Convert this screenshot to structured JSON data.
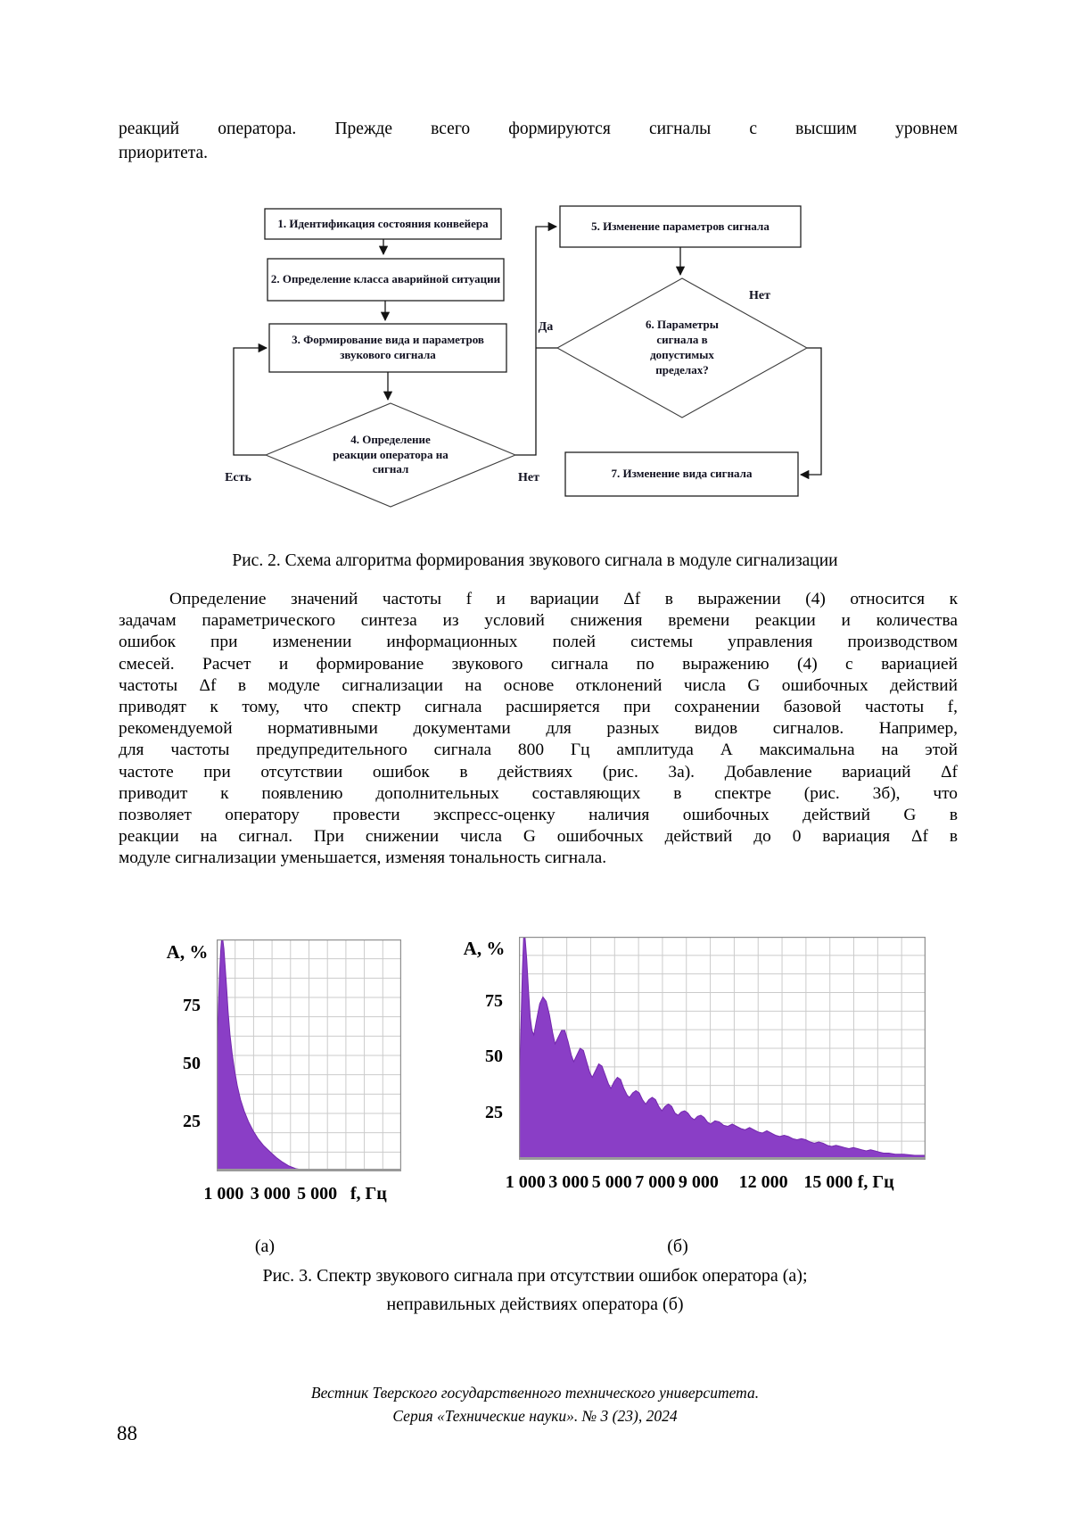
{
  "page": {
    "top_lines": [
      "реакций оператора. Прежде всего формируются сигналы с высшим уровнем",
      "приоритета."
    ],
    "fig2_caption": "Рис. 2. Схема алгоритма формирования звукового сигнала в модуле сигнализации",
    "body_lines": [
      "Определение значений частоты f и вариации Δf в выражении (4) относится к",
      "задачам параметрического синтеза из условий снижения времени реакции и количества",
      "ошибок при изменении информационных полей системы управления производством",
      "смесей. Расчет и формирование звукового сигнала по выражению (4) с вариацией",
      "частоты Δf в модуле сигнализации на основе отклонений числа G ошибочных действий",
      "приводят к тому, что спектр сигнала расширяется при сохранении базовой частоты f,",
      "рекомендуемой нормативными документами для разных видов сигналов. Например,",
      "для частоты предупредительного сигнала 800 Гц амплитуда А максимальна на этой",
      "частоте при отсутствии ошибок в действиях (рис. 3а). Добавление вариаций Δf",
      "приводит к появлению дополнительных составляющих в спектре (рис. 3б), что",
      "позволяет оператору провести экспресс-оценку наличия ошибочных действий G в",
      "реакции на сигнал. При снижении числа G ошибочных действий до 0 вариация Δf в",
      "модуле сигнализации уменьшается, изменяя тональность сигнала."
    ],
    "fig3_caption_line1": "Рис. 3. Спектр звукового сигнала при отсутствии ошибок оператора (а);",
    "fig3_caption_line2": "неправильных действиях оператора (б)",
    "footer_line1": "Вестник Тверского государственного технического университета.",
    "footer_line2": "Серия «Технические науки». № 3 (23), 2024",
    "page_number": "88"
  },
  "flowchart": {
    "nodes": {
      "n1": "1. Идентификация состояния конвейера",
      "n2": "2. Определение класса аварийной ситуации",
      "n3": "3. Формирование вида и параметров звукового сигнала",
      "n4": "4. Определение реакции оператора на сигнал",
      "n5": "5. Изменение параметров сигнала",
      "n6": "6. Параметры сигнала в допустимых пределах?",
      "n7": "7. Изменение вида сигнала"
    },
    "labels": {
      "yes": "Да",
      "no_params": "Нет",
      "reaction_yes": "Есть",
      "reaction_no": "Нет"
    }
  },
  "chart_data": [
    {
      "type": "area",
      "title": "(а)",
      "ylabel": "A, %",
      "xlabel": "f, Гц",
      "xrange": [
        700,
        8600
      ],
      "ylim": [
        0,
        100
      ],
      "grid": true,
      "x_gridlines": 10,
      "y_gridlines": 12,
      "fill_color": "#8a3ec6",
      "stroke_color": "#7327ad",
      "yticks": [
        {
          "label": "75",
          "value": 75
        },
        {
          "label": "50",
          "value": 50
        },
        {
          "label": "25",
          "value": 25
        }
      ],
      "xticks": [
        {
          "label": "1 000",
          "value": 1000
        },
        {
          "label": "3 000",
          "value": 3000
        },
        {
          "label": "5 000",
          "value": 5000
        }
      ],
      "unit_pos": 7200,
      "points": [
        [
          700,
          50
        ],
        [
          760,
          67
        ],
        [
          820,
          84
        ],
        [
          870,
          95
        ],
        [
          910,
          100
        ],
        [
          960,
          100
        ],
        [
          1010,
          96
        ],
        [
          1060,
          89
        ],
        [
          1120,
          80
        ],
        [
          1190,
          69
        ],
        [
          1270,
          59
        ],
        [
          1360,
          51
        ],
        [
          1460,
          44
        ],
        [
          1580,
          37
        ],
        [
          1720,
          31
        ],
        [
          1880,
          26
        ],
        [
          2060,
          21.5
        ],
        [
          2260,
          17.5
        ],
        [
          2480,
          14
        ],
        [
          2720,
          11
        ],
        [
          2980,
          8.5
        ],
        [
          3250,
          6
        ],
        [
          3520,
          4
        ],
        [
          3800,
          2.3
        ],
        [
          4080,
          1.2
        ],
        [
          4400,
          0.6
        ],
        [
          5000,
          0.4
        ],
        [
          8600,
          0.3
        ]
      ]
    },
    {
      "type": "area",
      "title": "(б)",
      "ylabel": "A, %",
      "xlabel": "f, Гц",
      "xrange": [
        700,
        19500
      ],
      "ylim": [
        0,
        100
      ],
      "grid": true,
      "x_gridlines": 17,
      "y_gridlines": 12,
      "fill_color": "#8a3ec6",
      "stroke_color": "#7327ad",
      "yticks": [
        {
          "label": "75",
          "value": 75
        },
        {
          "label": "50",
          "value": 50
        },
        {
          "label": "25",
          "value": 25
        }
      ],
      "xticks": [
        {
          "label": "1 000",
          "value": 1000
        },
        {
          "label": "3 000",
          "value": 3000
        },
        {
          "label": "5 000",
          "value": 5000
        },
        {
          "label": "7 000",
          "value": 7000
        },
        {
          "label": "9 000",
          "value": 9000
        },
        {
          "label": "12 000",
          "value": 12000
        },
        {
          "label": "15 000",
          "value": 15000
        }
      ],
      "unit_pos": 17200,
      "points": [
        [
          700,
          28
        ],
        [
          780,
          55
        ],
        [
          860,
          85
        ],
        [
          920,
          100
        ],
        [
          980,
          100
        ],
        [
          1060,
          90
        ],
        [
          1140,
          76
        ],
        [
          1220,
          64
        ],
        [
          1300,
          58
        ],
        [
          1390,
          56
        ],
        [
          1500,
          62
        ],
        [
          1660,
          70
        ],
        [
          1810,
          73
        ],
        [
          1960,
          71
        ],
        [
          2110,
          65
        ],
        [
          2260,
          57
        ],
        [
          2370,
          52
        ],
        [
          2520,
          55
        ],
        [
          2670,
          58
        ],
        [
          2820,
          58
        ],
        [
          2970,
          53
        ],
        [
          3120,
          47
        ],
        [
          3230,
          44
        ],
        [
          3380,
          47
        ],
        [
          3530,
          50
        ],
        [
          3680,
          49
        ],
        [
          3830,
          44
        ],
        [
          3980,
          39
        ],
        [
          4090,
          37
        ],
        [
          4240,
          40
        ],
        [
          4390,
          43
        ],
        [
          4540,
          42
        ],
        [
          4690,
          38
        ],
        [
          4840,
          34
        ],
        [
          4950,
          32
        ],
        [
          5100,
          35
        ],
        [
          5250,
          37
        ],
        [
          5400,
          36
        ],
        [
          5550,
          32
        ],
        [
          5700,
          29
        ],
        [
          5810,
          28
        ],
        [
          5960,
          30
        ],
        [
          6110,
          31
        ],
        [
          6260,
          30
        ],
        [
          6410,
          27
        ],
        [
          6560,
          25
        ],
        [
          6710,
          27
        ],
        [
          6860,
          28
        ],
        [
          7010,
          27
        ],
        [
          7160,
          24
        ],
        [
          7310,
          22
        ],
        [
          7460,
          24
        ],
        [
          7610,
          25
        ],
        [
          7760,
          24
        ],
        [
          7910,
          21
        ],
        [
          8060,
          20
        ],
        [
          8210,
          21.5
        ],
        [
          8360,
          22
        ],
        [
          8510,
          21
        ],
        [
          8660,
          19
        ],
        [
          8810,
          18
        ],
        [
          8960,
          19.5
        ],
        [
          9110,
          20
        ],
        [
          9260,
          19
        ],
        [
          9410,
          17
        ],
        [
          9560,
          16
        ],
        [
          9760,
          17.5
        ],
        [
          9960,
          17
        ],
        [
          10160,
          15.5
        ],
        [
          10360,
          15
        ],
        [
          10560,
          16
        ],
        [
          10760,
          15
        ],
        [
          10960,
          14
        ],
        [
          11160,
          13.5
        ],
        [
          11360,
          14.5
        ],
        [
          11560,
          13.5
        ],
        [
          11760,
          12.5
        ],
        [
          11960,
          12
        ],
        [
          12160,
          13
        ],
        [
          12360,
          12
        ],
        [
          12560,
          11
        ],
        [
          12760,
          10.5
        ],
        [
          12960,
          11
        ],
        [
          13160,
          10.5
        ],
        [
          13360,
          9.5
        ],
        [
          13560,
          9
        ],
        [
          13760,
          9.5
        ],
        [
          13960,
          9
        ],
        [
          14160,
          8
        ],
        [
          14360,
          7.5
        ],
        [
          14560,
          8
        ],
        [
          14760,
          7.5
        ],
        [
          14960,
          6.5
        ],
        [
          15160,
          6
        ],
        [
          15360,
          6.5
        ],
        [
          15560,
          6
        ],
        [
          15760,
          5.5
        ],
        [
          15960,
          5
        ],
        [
          16160,
          5.5
        ],
        [
          16360,
          5
        ],
        [
          16560,
          4.5
        ],
        [
          16760,
          4
        ],
        [
          16960,
          4.5
        ],
        [
          17160,
          4
        ],
        [
          17360,
          3.5
        ],
        [
          17560,
          3
        ],
        [
          17800,
          3
        ],
        [
          18100,
          2.5
        ],
        [
          18500,
          2.5
        ],
        [
          19000,
          2
        ],
        [
          19500,
          2
        ]
      ]
    }
  ]
}
